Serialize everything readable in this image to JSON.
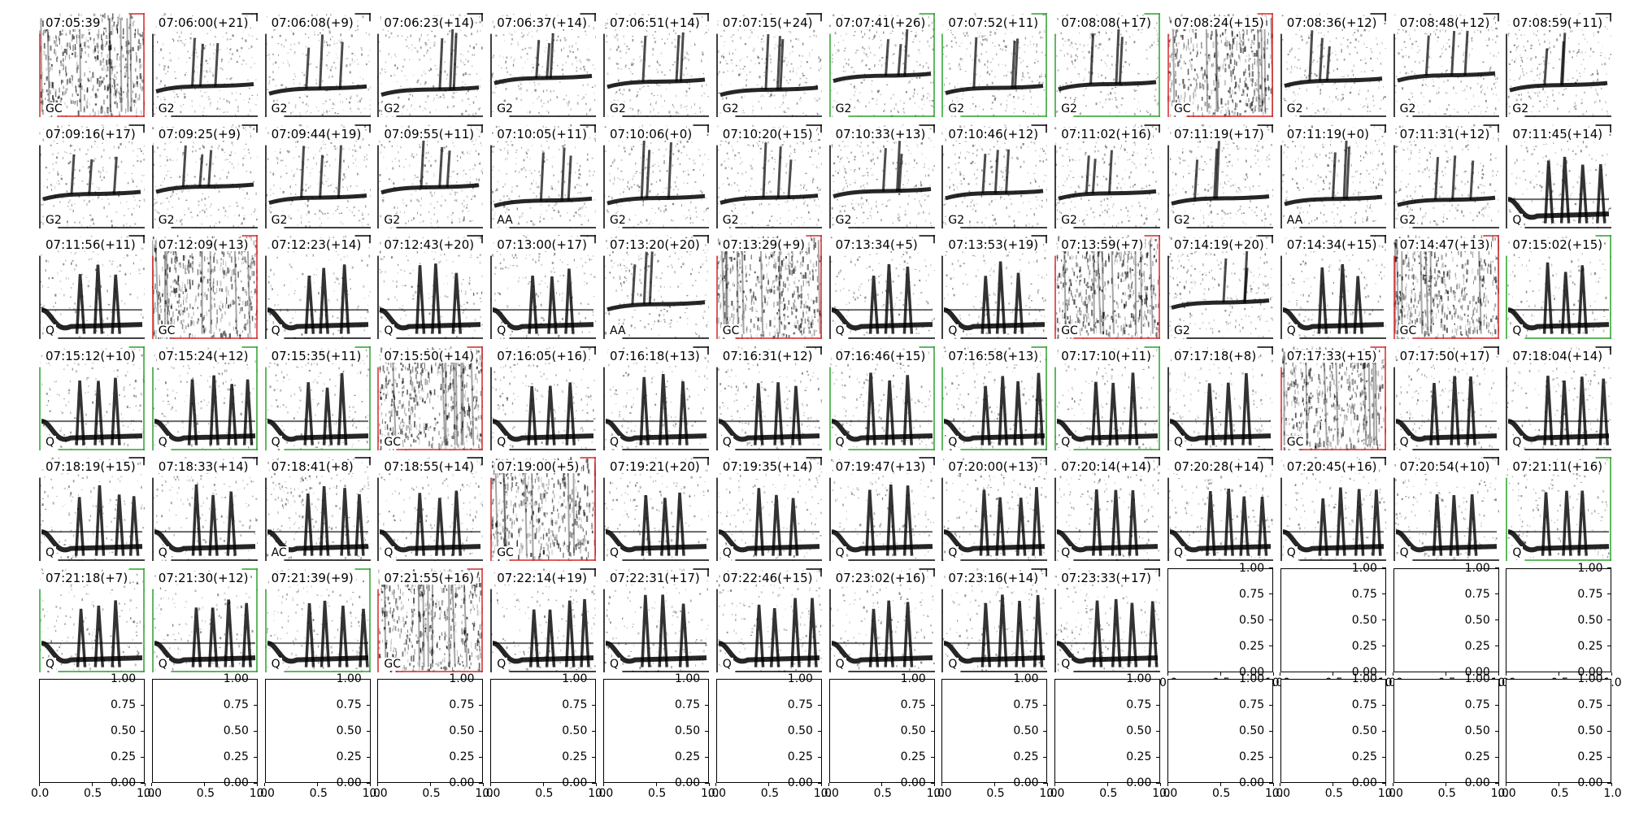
{
  "chart_data": {
    "type": "grid of spectrogram thumbnails",
    "grid": {
      "rows": 7,
      "columns": 14
    },
    "colors": {
      "spectrogram": "#000000",
      "background": "#ffffff",
      "accepted": "#2ca02c",
      "rejected": "#d62728",
      "unmarked": "#000000"
    },
    "panels": [
      {
        "time": "07:05:39",
        "label": "GC",
        "mark": "red"
      },
      {
        "time": "07:06:00(+21)",
        "label": "G2",
        "mark": "none"
      },
      {
        "time": "07:06:08(+9)",
        "label": "G2",
        "mark": "none"
      },
      {
        "time": "07:06:23(+14)",
        "label": "G2",
        "mark": "none"
      },
      {
        "time": "07:06:37(+14)",
        "label": "G2",
        "mark": "none"
      },
      {
        "time": "07:06:51(+14)",
        "label": "G2",
        "mark": "none"
      },
      {
        "time": "07:07:15(+24)",
        "label": "G2",
        "mark": "none"
      },
      {
        "time": "07:07:41(+26)",
        "label": "G2",
        "mark": "green"
      },
      {
        "time": "07:07:52(+11)",
        "label": "G2",
        "mark": "green"
      },
      {
        "time": "07:08:08(+17)",
        "label": "G2",
        "mark": "green"
      },
      {
        "time": "07:08:24(+15)",
        "label": "GC",
        "mark": "red"
      },
      {
        "time": "07:08:36(+12)",
        "label": "G2",
        "mark": "none"
      },
      {
        "time": "07:08:48(+12)",
        "label": "G2",
        "mark": "none"
      },
      {
        "time": "07:08:59(+11)",
        "label": "G2",
        "mark": "none"
      },
      {
        "time": "07:09:16(+17)",
        "label": "G2",
        "mark": "none"
      },
      {
        "time": "07:09:25(+9)",
        "label": "G2",
        "mark": "none"
      },
      {
        "time": "07:09:44(+19)",
        "label": "G2",
        "mark": "none"
      },
      {
        "time": "07:09:55(+11)",
        "label": "G2",
        "mark": "none"
      },
      {
        "time": "07:10:05(+11)",
        "label": "AA",
        "mark": "none"
      },
      {
        "time": "07:10:06(+0)",
        "label": "G2",
        "mark": "none"
      },
      {
        "time": "07:10:20(+15)",
        "label": "G2",
        "mark": "none"
      },
      {
        "time": "07:10:33(+13)",
        "label": "G2",
        "mark": "none"
      },
      {
        "time": "07:10:46(+12)",
        "label": "G2",
        "mark": "none"
      },
      {
        "time": "07:11:02(+16)",
        "label": "G2",
        "mark": "none"
      },
      {
        "time": "07:11:19(+17)",
        "label": "G2",
        "mark": "none"
      },
      {
        "time": "07:11:19(+0)",
        "label": "AA",
        "mark": "none"
      },
      {
        "time": "07:11:31(+12)",
        "label": "G2",
        "mark": "none"
      },
      {
        "time": "07:11:45(+14)",
        "label": "Q",
        "mark": "none"
      },
      {
        "time": "07:11:56(+11)",
        "label": "Q",
        "mark": "none"
      },
      {
        "time": "07:12:09(+13)",
        "label": "GC",
        "mark": "red"
      },
      {
        "time": "07:12:23(+14)",
        "label": "Q",
        "mark": "none"
      },
      {
        "time": "07:12:43(+20)",
        "label": "Q",
        "mark": "none"
      },
      {
        "time": "07:13:00(+17)",
        "label": "Q",
        "mark": "none"
      },
      {
        "time": "07:13:20(+20)",
        "label": "AA",
        "mark": "none"
      },
      {
        "time": "07:13:29(+9)",
        "label": "GC",
        "mark": "red"
      },
      {
        "time": "07:13:34(+5)",
        "label": "Q",
        "mark": "none"
      },
      {
        "time": "07:13:53(+19)",
        "label": "Q",
        "mark": "none"
      },
      {
        "time": "07:13:59(+7)",
        "label": "GC",
        "mark": "red"
      },
      {
        "time": "07:14:19(+20)",
        "label": "G2",
        "mark": "none"
      },
      {
        "time": "07:14:34(+15)",
        "label": "Q",
        "mark": "none"
      },
      {
        "time": "07:14:47(+13)",
        "label": "GC",
        "mark": "red"
      },
      {
        "time": "07:15:02(+15)",
        "label": "Q",
        "mark": "green"
      },
      {
        "time": "07:15:12(+10)",
        "label": "Q",
        "mark": "green"
      },
      {
        "time": "07:15:24(+12)",
        "label": "Q",
        "mark": "green"
      },
      {
        "time": "07:15:35(+11)",
        "label": "Q",
        "mark": "green"
      },
      {
        "time": "07:15:50(+14)",
        "label": "GC",
        "mark": "red"
      },
      {
        "time": "07:16:05(+16)",
        "label": "Q",
        "mark": "none"
      },
      {
        "time": "07:16:18(+13)",
        "label": "Q",
        "mark": "none"
      },
      {
        "time": "07:16:31(+12)",
        "label": "Q",
        "mark": "none"
      },
      {
        "time": "07:16:46(+15)",
        "label": "Q",
        "mark": "green"
      },
      {
        "time": "07:16:58(+13)",
        "label": "Q",
        "mark": "green"
      },
      {
        "time": "07:17:10(+11)",
        "label": "Q",
        "mark": "green"
      },
      {
        "time": "07:17:18(+8)",
        "label": "Q",
        "mark": "none"
      },
      {
        "time": "07:17:33(+15)",
        "label": "GC",
        "mark": "red"
      },
      {
        "time": "07:17:50(+17)",
        "label": "Q",
        "mark": "none"
      },
      {
        "time": "07:18:04(+14)",
        "label": "Q",
        "mark": "none"
      },
      {
        "time": "07:18:19(+15)",
        "label": "Q",
        "mark": "none"
      },
      {
        "time": "07:18:33(+14)",
        "label": "Q",
        "mark": "none"
      },
      {
        "time": "07:18:41(+8)",
        "label": "AC",
        "mark": "none"
      },
      {
        "time": "07:18:55(+14)",
        "label": "Q",
        "mark": "none"
      },
      {
        "time": "07:19:00(+5)",
        "label": "GC",
        "mark": "red"
      },
      {
        "time": "07:19:21(+20)",
        "label": "Q",
        "mark": "none"
      },
      {
        "time": "07:19:35(+14)",
        "label": "Q",
        "mark": "none"
      },
      {
        "time": "07:19:47(+13)",
        "label": "Q",
        "mark": "none"
      },
      {
        "time": "07:20:00(+13)",
        "label": "Q",
        "mark": "none"
      },
      {
        "time": "07:20:14(+14)",
        "label": "Q",
        "mark": "none"
      },
      {
        "time": "07:20:28(+14)",
        "label": "Q",
        "mark": "none"
      },
      {
        "time": "07:20:45(+16)",
        "label": "Q",
        "mark": "none"
      },
      {
        "time": "07:20:54(+10)",
        "label": "Q",
        "mark": "none"
      },
      {
        "time": "07:21:11(+16)",
        "label": "Q",
        "mark": "green"
      },
      {
        "time": "07:21:18(+7)",
        "label": "Q",
        "mark": "green"
      },
      {
        "time": "07:21:30(+12)",
        "label": "Q",
        "mark": "green"
      },
      {
        "time": "07:21:39(+9)",
        "label": "Q",
        "mark": "green"
      },
      {
        "time": "07:21:55(+16)",
        "label": "GC",
        "mark": "red"
      },
      {
        "time": "07:22:14(+19)",
        "label": "Q",
        "mark": "none"
      },
      {
        "time": "07:22:31(+17)",
        "label": "Q",
        "mark": "none"
      },
      {
        "time": "07:22:46(+15)",
        "label": "Q",
        "mark": "none"
      },
      {
        "time": "07:23:02(+16)",
        "label": "Q",
        "mark": "none"
      },
      {
        "time": "07:23:16(+14)",
        "label": "Q",
        "mark": "none"
      },
      {
        "time": "07:23:33(+17)",
        "label": "Q",
        "mark": "none"
      }
    ],
    "empty_axes": {
      "count": 18,
      "xlim": [
        0.0,
        1.0
      ],
      "ylim": [
        0.0,
        1.0
      ],
      "xticks": [
        "0.0",
        "0.5",
        "1.0"
      ],
      "yticks": [
        "0.00",
        "0.25",
        "0.50",
        "0.75",
        "1.00"
      ]
    }
  }
}
